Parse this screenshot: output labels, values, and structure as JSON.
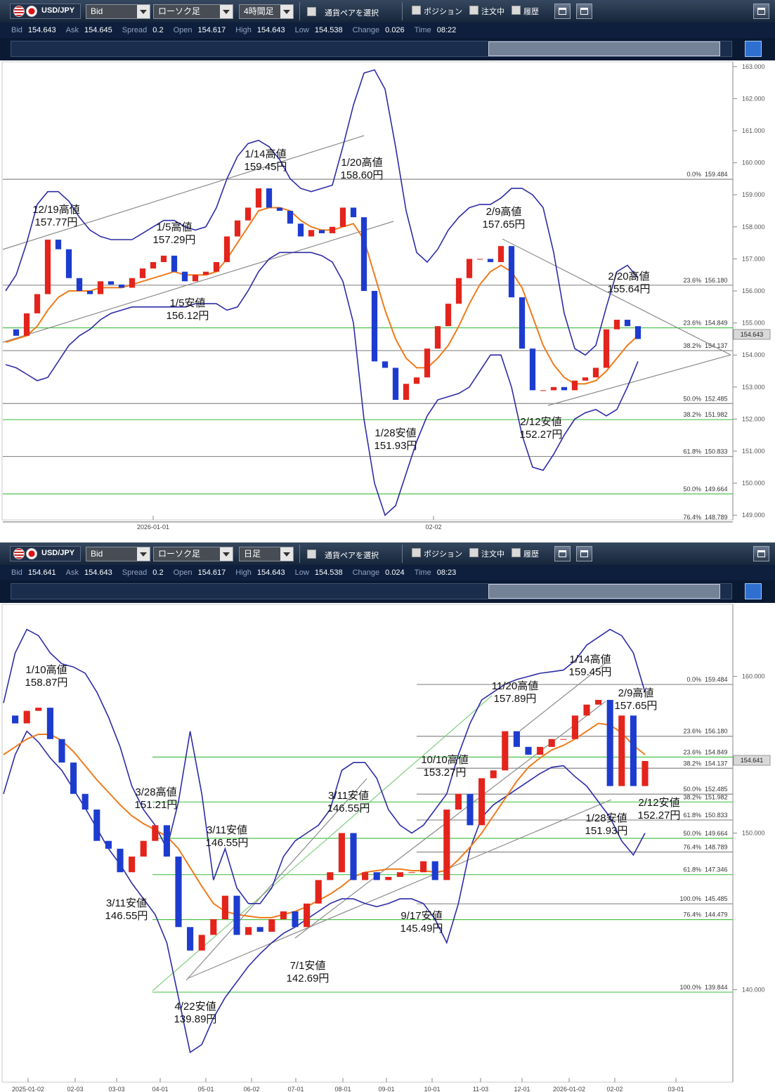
{
  "panels": [
    {
      "toolbar": {
        "symbol": "USD/JPY",
        "price_side": "Bid",
        "chart_style": "ローソク足",
        "timeframe": "4時間足",
        "pair_select": "通貨ペアを選択",
        "toggles": [
          "ポジション",
          "注文中",
          "履歴"
        ]
      },
      "quote": [
        {
          "label": "Bid",
          "value": "154.643"
        },
        {
          "label": "Ask",
          "value": "154.645"
        },
        {
          "label": "Spread",
          "value": "0.2"
        },
        {
          "label": "Open",
          "value": "154.617"
        },
        {
          "label": "High",
          "value": "154.643"
        },
        {
          "label": "Low",
          "value": "154.538"
        },
        {
          "label": "Change",
          "value": "0.026"
        },
        {
          "label": "Time",
          "value": "08:22"
        }
      ],
      "chart": {
        "ylim": [
          148.85,
          163.15
        ],
        "yticks": [
          {
            "value": 149,
            "label": "149.000"
          },
          {
            "value": 150,
            "label": "150.000"
          },
          {
            "value": 151,
            "label": "151.000"
          },
          {
            "value": 152,
            "label": "152.000"
          },
          {
            "value": 153,
            "label": "153.000"
          },
          {
            "value": 154,
            "label": "154.000"
          },
          {
            "value": 155,
            "label": "155.000"
          },
          {
            "value": 156,
            "label": "156.000"
          },
          {
            "value": 157,
            "label": "157.000"
          },
          {
            "value": 158,
            "label": "158.000"
          },
          {
            "value": 159,
            "label": "159.000"
          },
          {
            "value": 160,
            "label": "160.000"
          },
          {
            "value": 161,
            "label": "161.000"
          },
          {
            "value": 162,
            "label": "162.000"
          },
          {
            "value": 163,
            "label": "163.000"
          }
        ],
        "x_labels": [
          "2026-01-01",
          "02-02"
        ],
        "colors": {
          "up": "#e3241c",
          "down": "#1d3ccf",
          "ma": "#f07b1c",
          "band": "#2d2ca6"
        },
        "series": {
          "close": [
            154.8,
            154.6,
            155.3,
            155.9,
            157.6,
            157.3,
            156.4,
            156.0,
            155.9,
            156.3,
            156.2,
            156.1,
            156.4,
            156.7,
            156.9,
            157.1,
            156.6,
            156.3,
            156.5,
            156.6,
            156.9,
            157.7,
            158.2,
            158.6,
            159.2,
            158.6,
            158.5,
            158.1,
            157.7,
            157.9,
            157.8,
            158.0,
            158.6,
            158.3,
            156.0,
            153.8,
            153.6,
            152.6,
            153.1,
            153.3,
            154.2,
            154.9,
            155.6,
            156.4,
            157.0,
            157.0,
            156.9,
            157.4,
            155.8,
            154.2,
            152.9,
            152.9,
            153.0,
            152.9,
            153.2,
            153.3,
            153.6,
            154.8,
            155.1,
            154.9,
            154.5
          ],
          "ma": [
            154.4,
            154.5,
            154.6,
            154.9,
            155.4,
            155.8,
            156.0,
            156.0,
            156.0,
            156.1,
            156.1,
            156.1,
            156.2,
            156.3,
            156.4,
            156.5,
            156.6,
            156.5,
            156.5,
            156.5,
            156.6,
            157.0,
            157.5,
            158.0,
            158.5,
            158.6,
            158.6,
            158.5,
            158.2,
            158.0,
            157.9,
            157.9,
            158.0,
            158.1,
            157.6,
            156.5,
            155.4,
            154.5,
            153.9,
            153.6,
            153.6,
            153.9,
            154.3,
            154.9,
            155.6,
            156.2,
            156.6,
            156.8,
            156.6,
            156.1,
            155.2,
            154.3,
            153.7,
            153.3,
            153.1,
            153.1,
            153.2,
            153.5,
            153.9,
            154.3,
            154.6
          ],
          "upper": [
            156.0,
            156.5,
            157.5,
            158.7,
            159.1,
            159.1,
            158.8,
            158.3,
            157.9,
            157.7,
            157.6,
            157.6,
            157.6,
            157.8,
            158.0,
            158.2,
            158.2,
            158.0,
            157.9,
            158.0,
            158.6,
            159.5,
            160.2,
            160.6,
            160.7,
            160.5,
            160.1,
            159.5,
            159.2,
            159.1,
            159.2,
            159.3,
            160.5,
            161.8,
            162.8,
            162.9,
            162.3,
            160.5,
            158.5,
            157.2,
            156.9,
            157.3,
            157.9,
            158.3,
            158.6,
            158.7,
            158.7,
            158.9,
            159.2,
            159.2,
            159.0,
            158.6,
            157.2,
            155.3,
            154.2,
            154.0,
            154.3,
            155.5,
            156.6,
            156.8,
            156.4
          ],
          "lower": [
            153.7,
            153.6,
            153.4,
            153.2,
            153.3,
            153.8,
            154.3,
            154.6,
            154.8,
            155.1,
            155.3,
            155.4,
            155.5,
            155.5,
            155.5,
            155.5,
            155.5,
            155.5,
            155.6,
            155.6,
            155.6,
            155.4,
            155.5,
            156.0,
            156.6,
            157.0,
            157.2,
            157.2,
            157.2,
            157.2,
            157.1,
            156.9,
            156.3,
            155.0,
            152.0,
            150.0,
            149.0,
            149.3,
            150.3,
            151.3,
            152.1,
            152.6,
            152.7,
            152.8,
            153.0,
            153.5,
            154.0,
            154.0,
            153.0,
            151.5,
            150.5,
            150.4,
            150.9,
            151.5,
            152.0,
            152.2,
            152.3,
            152.1,
            152.3,
            153.0,
            153.8
          ]
        },
        "current": {
          "value": 154.643,
          "label": "154.643"
        },
        "fibs": [
          {
            "pct": "0.0%",
            "level": 159.484,
            "color": "#8a8a8a"
          },
          {
            "pct": "23.6%",
            "level": {
              "value": 156.18,
              "label": "156.180"
            },
            "color": "#8a8a8a"
          },
          {
            "pct": "23.6%",
            "level": 154.849,
            "color": "#4fc24f"
          },
          {
            "pct": "38.2%",
            "level": 154.137,
            "color": "#8a8a8a"
          },
          {
            "pct": "50.0%",
            "level": 152.485,
            "color": "#8a8a8a"
          },
          {
            "pct": "38.2%",
            "level": 151.982,
            "color": "#4fc24f"
          },
          {
            "pct": "61.8%",
            "level": 150.833,
            "color": "#8a8a8a"
          },
          {
            "pct": "50.0%",
            "level": 149.664,
            "color": "#4fc24f"
          },
          {
            "pct": "76.4%",
            "level": 148.789,
            "color": "#8a8a8a"
          }
        ],
        "annotations": [
          {
            "title": "12/19高値",
            "price": "157.77円"
          },
          {
            "title": "1/5高値",
            "price": "157.29円"
          },
          {
            "title": "1/5安値",
            "price": "156.12円"
          },
          {
            "title": "1/14高値",
            "price": "159.45円"
          },
          {
            "title": "1/20高値",
            "price": "158.60円"
          },
          {
            "title": "1/28安値",
            "price": "151.93円"
          },
          {
            "title": "2/9高値",
            "price": "157.65円"
          },
          {
            "title": "2/12安値",
            "price": "152.27円"
          },
          {
            "title": "2/20高値",
            "price": "155.64円"
          }
        ]
      }
    },
    {
      "toolbar": {
        "symbol": "USD/JPY",
        "price_side": "Bid",
        "chart_style": "ローソク足",
        "timeframe": "日足",
        "pair_select": "通貨ペアを選択",
        "toggles": [
          "ポジション",
          "注文中",
          "履歴"
        ]
      },
      "quote": [
        {
          "label": "Bid",
          "value": "154.641"
        },
        {
          "label": "Ask",
          "value": "154.643"
        },
        {
          "label": "Spread",
          "value": "0.2"
        },
        {
          "label": "Open",
          "value": "154.617"
        },
        {
          "label": "High",
          "value": "154.643"
        },
        {
          "label": "Low",
          "value": "154.538"
        },
        {
          "label": "Change",
          "value": "0.024"
        },
        {
          "label": "Time",
          "value": "08:23"
        }
      ],
      "chart": {
        "ylim": [
          134.1,
          164.6
        ],
        "yticks": [
          {
            "value": 140,
            "label": "140.000"
          },
          {
            "value": 150,
            "label": "150.000"
          },
          {
            "value": 160,
            "label": "160.000"
          }
        ],
        "x_labels": [
          "2025-01-02",
          "02-03",
          "03-03",
          "04-01",
          "05-01",
          "06-02",
          "07-01",
          "08-01",
          "09-01",
          "10-01",
          "11-03",
          "12-01",
          "2026-01-02",
          "02-02",
          "03-01"
        ],
        "colors": {
          "up": "#e3241c",
          "down": "#1d3ccf",
          "ma": "#f07b1c",
          "band": "#2d2ca6"
        },
        "series": {
          "close": [
            157.5,
            157.0,
            157.8,
            158.0,
            156.0,
            154.5,
            152.5,
            151.5,
            149.5,
            149.0,
            147.5,
            148.5,
            149.5,
            150.5,
            148.5,
            144.0,
            142.5,
            143.5,
            144.5,
            146.0,
            143.5,
            144.0,
            143.7,
            144.5,
            145.0,
            144.0,
            145.5,
            147.0,
            147.5,
            150.0,
            147.0,
            147.5,
            147.0,
            147.2,
            147.5,
            147.5,
            148.2,
            147.0,
            151.5,
            152.5,
            150.5,
            153.5,
            154.0,
            156.5,
            155.5,
            155.0,
            155.5,
            156.0,
            156.0,
            157.5,
            158.2,
            158.5,
            153.0,
            157.5,
            153.0,
            154.6
          ],
          "ma": [
            155.0,
            155.5,
            156.0,
            156.3,
            156.3,
            155.9,
            155.2,
            154.3,
            153.4,
            152.6,
            151.8,
            151.1,
            150.6,
            150.2,
            149.8,
            149.0,
            147.8,
            146.6,
            145.5,
            145.0,
            144.8,
            144.7,
            144.6,
            144.6,
            144.8,
            145.0,
            145.3,
            145.7,
            146.1,
            146.6,
            147.2,
            147.5,
            147.6,
            147.7,
            147.7,
            147.6,
            147.6,
            147.5,
            147.6,
            148.3,
            149.1,
            150.0,
            151.1,
            152.2,
            153.3,
            154.2,
            154.8,
            155.3,
            155.6,
            156.0,
            156.5,
            157.0,
            156.9,
            156.4,
            155.6,
            155.0
          ],
          "upper": [
            158.3,
            161.5,
            163.0,
            162.6,
            161.5,
            160.8,
            160.6,
            160.2,
            159.0,
            157.4,
            155.5,
            153.0,
            151.5,
            150.5,
            149.0,
            152.0,
            156.5,
            152.5,
            147.0,
            149.0,
            146.5,
            145.5,
            145.5,
            146.5,
            148.5,
            149.5,
            150.0,
            150.5,
            151.5,
            154.0,
            154.5,
            154.5,
            153.5,
            151.5,
            150.5,
            150.0,
            150.5,
            151.5,
            152.5,
            155.0,
            157.0,
            158.5,
            159.0,
            159.5,
            159.8,
            160.0,
            160.2,
            160.3,
            160.4,
            161.0,
            162.0,
            162.5,
            163.0,
            162.6,
            161.5,
            159.0
          ],
          "lower": [
            152.5,
            155.0,
            156.5,
            155.8,
            154.8,
            154.0,
            152.8,
            151.6,
            150.3,
            149.0,
            148.0,
            146.8,
            145.8,
            144.8,
            143.0,
            139.5,
            136.0,
            136.5,
            138.2,
            139.5,
            140.5,
            141.5,
            142.3,
            143.0,
            143.6,
            144.0,
            144.5,
            145.0,
            145.5,
            145.8,
            145.8,
            145.5,
            145.3,
            145.5,
            145.8,
            145.8,
            145.5,
            144.5,
            143.0,
            145.5,
            149.0,
            151.0,
            151.8,
            152.3,
            152.8,
            153.3,
            153.8,
            154.2,
            154.3,
            153.6,
            153.0,
            152.0,
            151.0,
            149.5,
            148.6,
            150.0
          ]
        },
        "current": {
          "value": 154.641,
          "label": "154.641"
        },
        "fibs": [
          {
            "pct": "0.0%",
            "level": 159.484,
            "color": "#8a8a8a"
          },
          {
            "pct": "23.6%",
            "level": {
              "value": 156.18,
              "label": "156.180"
            },
            "color": "#8a8a8a"
          },
          {
            "pct": "23.6%",
            "level": 154.849,
            "color": "#4fc24f"
          },
          {
            "pct": "38.2%",
            "level": 154.137,
            "color": "#8a8a8a"
          },
          {
            "pct": "50.0%",
            "level": 152.485,
            "color": "#8a8a8a"
          },
          {
            "pct": "38.2%",
            "level": 151.982,
            "color": "#4fc24f"
          },
          {
            "pct": "61.8%",
            "level": 150.833,
            "color": "#8a8a8a"
          },
          {
            "pct": "50.0%",
            "level": 149.664,
            "color": "#4fc24f"
          },
          {
            "pct": "76.4%",
            "level": 148.789,
            "color": "#8a8a8a"
          },
          {
            "pct": "61.8%",
            "level": 147.346,
            "color": "#4fc24f"
          },
          {
            "pct": "100.0%",
            "level": 145.485,
            "color": "#8a8a8a"
          },
          {
            "pct": "76.4%",
            "level": 144.479,
            "color": "#4fc24f"
          },
          {
            "pct": "100.0%",
            "level": 139.844,
            "color": "#4fc24f"
          }
        ],
        "annotations": [
          {
            "title": "1/10高値",
            "price": "158.87円"
          },
          {
            "title": "3/28高値",
            "price": "151.21円"
          },
          {
            "title": "3/11安値",
            "price": "146.55円"
          },
          {
            "title": "3/11安値",
            "price": "146.55円"
          },
          {
            "title": "4/22安値",
            "price": "139.89円"
          },
          {
            "title": "7/1安値",
            "price": "142.69円"
          },
          {
            "title": "3/11安値",
            "price": "146.55円"
          },
          {
            "title": "9/17安値",
            "price": "145.49円"
          },
          {
            "title": "10/10高値",
            "price": "153.27円"
          },
          {
            "title": "11/20高値",
            "price": "157.89円"
          },
          {
            "title": "1/14高値",
            "price": "159.45円"
          },
          {
            "title": "1/28安値",
            "price": "151.93円"
          },
          {
            "title": "2/9高値",
            "price": "157.65円"
          },
          {
            "title": "2/12安値",
            "price": "152.27円"
          }
        ]
      }
    }
  ]
}
